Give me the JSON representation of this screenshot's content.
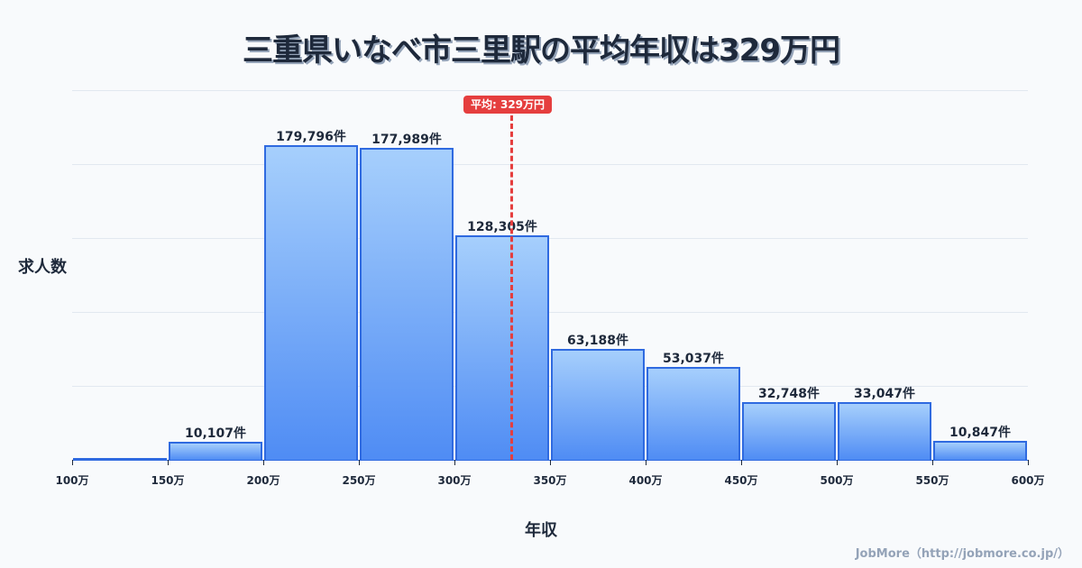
{
  "title": "三重県いなべ市三里駅の平均年収は329万円",
  "footer": "JobMore（http://jobmore.co.jp/）",
  "average_badge": "平均: 329万円",
  "chart_data": {
    "type": "bar",
    "title": "三重県いなべ市三里駅の平均年収は329万円",
    "xlabel": "年収",
    "ylabel": "求人数",
    "categories": [
      "100-150万",
      "150-200万",
      "200-250万",
      "250-300万",
      "300-350万",
      "350-400万",
      "400-450万",
      "450-500万",
      "500-550万",
      "550-600万"
    ],
    "values": [
      500,
      10107,
      179796,
      177989,
      128305,
      63188,
      53037,
      32748,
      33047,
      10847
    ],
    "value_labels": [
      "",
      "10,107件",
      "179,796件",
      "177,989件",
      "128,305件",
      "63,188件",
      "53,037件",
      "32,748件",
      "33,047件",
      "10,847件"
    ],
    "x_ticks": [
      "100万",
      "150万",
      "200万",
      "250万",
      "300万",
      "350万",
      "400万",
      "450万",
      "500万",
      "550万",
      "600万"
    ],
    "average": 329,
    "average_label": "平均: 329万円",
    "ylim": [
      0,
      211000
    ],
    "grid": true,
    "colors": {
      "bar_top": "#a6cffc",
      "bar_bottom": "#4f8cf4",
      "bar_border": "#2f6ae0",
      "average_line": "#e53e3e"
    }
  }
}
